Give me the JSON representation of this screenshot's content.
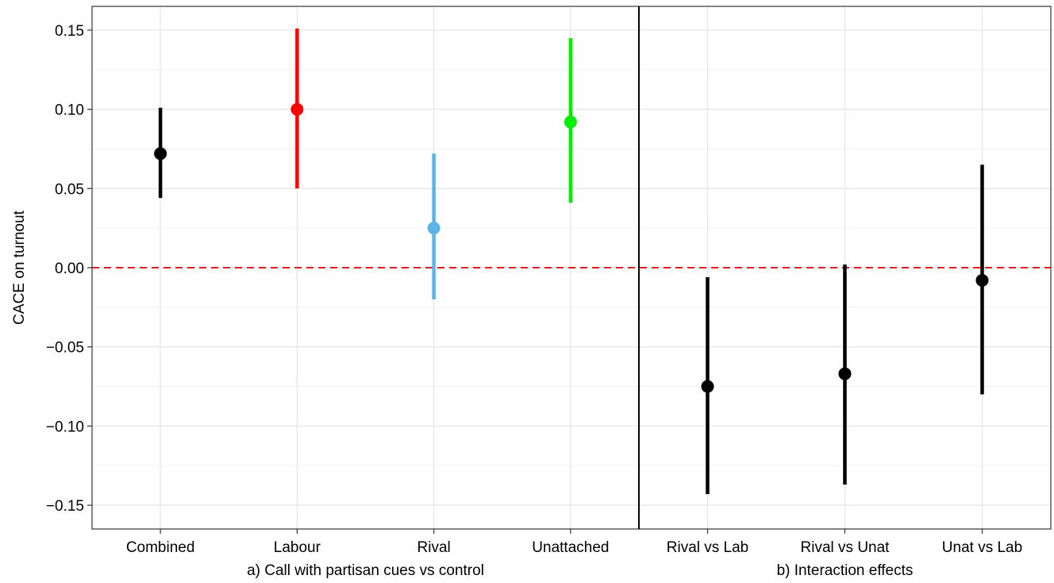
{
  "chart_data": {
    "type": "scatter",
    "subtype": "point-range",
    "ylabel": "CACE on turnout",
    "ylim": [
      -0.165,
      0.165
    ],
    "yticks": [
      0.15,
      0.1,
      0.05,
      0.0,
      -0.05,
      -0.1,
      -0.15
    ],
    "ytick_labels": [
      "0.15",
      "0.10",
      "0.05",
      "0.00",
      "−0.05",
      "−0.10",
      "−0.15"
    ],
    "grid": true,
    "reference_line": {
      "y": 0,
      "style": "dashed",
      "color": "#e41a1c"
    },
    "panels": [
      {
        "xlabel": "a) Call with partisan cues vs control",
        "categories": [
          "Combined",
          "Labour",
          "Rival",
          "Unattached"
        ],
        "estimates": [
          0.072,
          0.1,
          0.025,
          0.092
        ],
        "lower": [
          0.044,
          0.05,
          -0.02,
          0.041
        ],
        "upper": [
          0.101,
          0.151,
          0.072,
          0.145
        ],
        "colors": [
          "#000000",
          "#ff0000",
          "#5bb4e5",
          "#00ee00"
        ]
      },
      {
        "xlabel": "b) Interaction effects",
        "categories": [
          "Rival vs Lab",
          "Rival vs Unat",
          "Unat vs Lab"
        ],
        "estimates": [
          -0.075,
          -0.067,
          -0.008
        ],
        "lower": [
          -0.143,
          -0.137,
          -0.08
        ],
        "upper": [
          -0.006,
          0.002,
          0.065
        ],
        "colors": [
          "#000000",
          "#000000",
          "#000000"
        ]
      }
    ]
  }
}
